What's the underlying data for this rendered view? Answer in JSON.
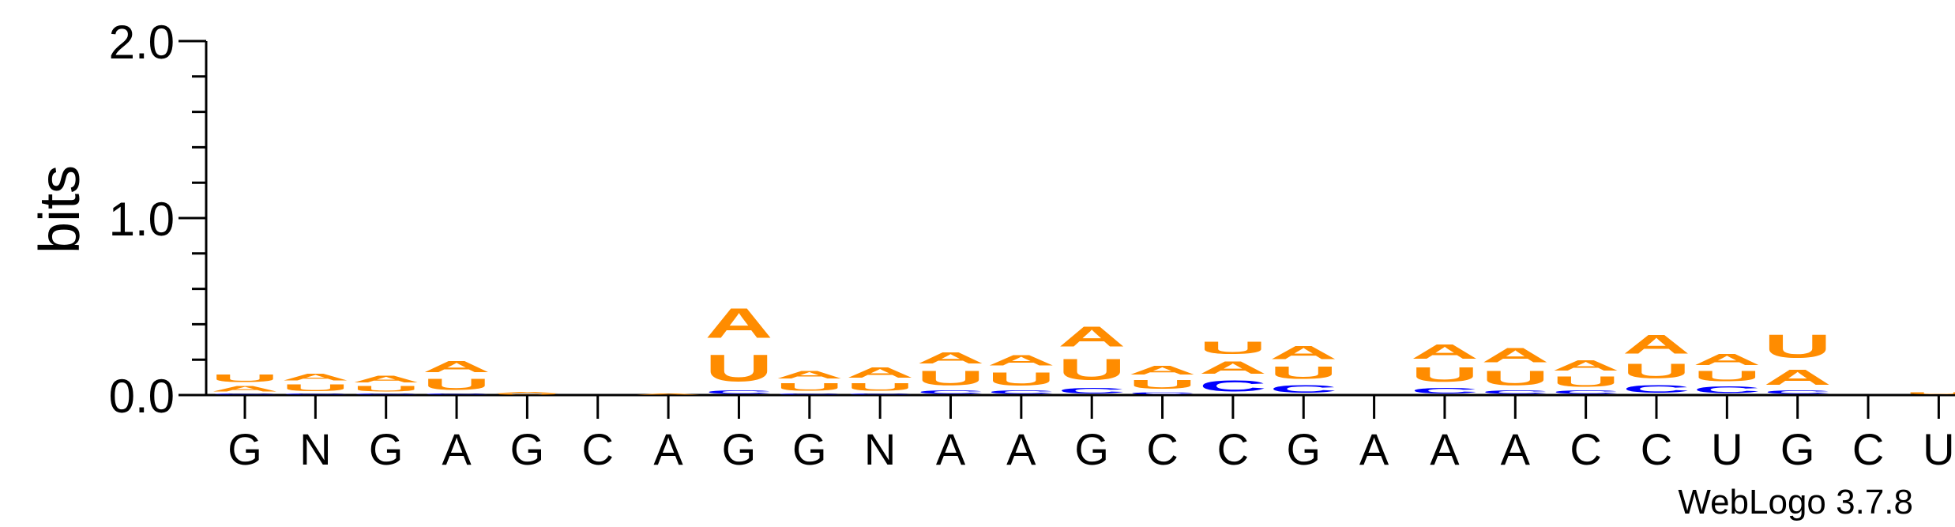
{
  "chart_data": {
    "type": "sequence-logo",
    "ylabel": "bits",
    "yticks": [
      "0.0",
      "1.0",
      "2.0"
    ],
    "ylim": [
      0,
      2
    ],
    "credit": "WebLogo 3.7.8",
    "colors": {
      "A": "#ff8c00",
      "U": "#ff8c00",
      "C": "#0000ff",
      "G": "#0000ff"
    },
    "positions": [
      {
        "label": "G",
        "stack": [
          [
            "C",
            0.01
          ],
          [
            "A",
            0.05
          ],
          [
            "U",
            0.07
          ]
        ]
      },
      {
        "label": "N",
        "stack": [
          [
            "C",
            0.01
          ],
          [
            "U",
            0.06
          ],
          [
            "A",
            0.06
          ]
        ]
      },
      {
        "label": "G",
        "stack": [
          [
            "C",
            0.01
          ],
          [
            "U",
            0.05
          ],
          [
            "A",
            0.06
          ]
        ]
      },
      {
        "label": "A",
        "stack": [
          [
            "C",
            0.01
          ],
          [
            "U",
            0.1
          ],
          [
            "A",
            0.1
          ]
        ]
      },
      {
        "label": "G",
        "stack": [
          [
            "U",
            0.01
          ],
          [
            "A",
            0.01
          ]
        ]
      },
      {
        "label": "C",
        "stack": []
      },
      {
        "label": "A",
        "stack": [
          [
            "A",
            0.01
          ]
        ]
      },
      {
        "label": "G",
        "stack": [
          [
            "C",
            0.03
          ],
          [
            "U",
            0.24
          ],
          [
            "A",
            0.27
          ]
        ]
      },
      {
        "label": "G",
        "stack": [
          [
            "C",
            0.01
          ],
          [
            "U",
            0.07
          ],
          [
            "A",
            0.07
          ]
        ]
      },
      {
        "label": "N",
        "stack": [
          [
            "C",
            0.01
          ],
          [
            "U",
            0.07
          ],
          [
            "A",
            0.09
          ]
        ]
      },
      {
        "label": "A",
        "stack": [
          [
            "C",
            0.03
          ],
          [
            "U",
            0.13
          ],
          [
            "A",
            0.1
          ]
        ]
      },
      {
        "label": "A",
        "stack": [
          [
            "C",
            0.03
          ],
          [
            "U",
            0.12
          ],
          [
            "A",
            0.09
          ]
        ]
      },
      {
        "label": "G",
        "stack": [
          [
            "C",
            0.05
          ],
          [
            "U",
            0.19
          ],
          [
            "A",
            0.18
          ]
        ]
      },
      {
        "label": "C",
        "stack": [
          [
            "C",
            0.02
          ],
          [
            "U",
            0.08
          ],
          [
            "A",
            0.08
          ]
        ]
      },
      {
        "label": "C",
        "stack": [
          [
            "C",
            0.1
          ],
          [
            "A",
            0.11
          ],
          [
            "U",
            0.11
          ]
        ]
      },
      {
        "label": "G",
        "stack": [
          [
            "C",
            0.07
          ],
          [
            "U",
            0.11
          ],
          [
            "A",
            0.12
          ]
        ]
      },
      {
        "label": "A",
        "stack": []
      },
      {
        "label": "A",
        "stack": [
          [
            "C",
            0.05
          ],
          [
            "U",
            0.13
          ],
          [
            "A",
            0.13
          ]
        ]
      },
      {
        "label": "A",
        "stack": [
          [
            "C",
            0.03
          ],
          [
            "U",
            0.13
          ],
          [
            "A",
            0.13
          ]
        ]
      },
      {
        "label": "C",
        "stack": [
          [
            "C",
            0.03
          ],
          [
            "U",
            0.09
          ],
          [
            "A",
            0.09
          ]
        ]
      },
      {
        "label": "C",
        "stack": [
          [
            "C",
            0.07
          ],
          [
            "U",
            0.13
          ],
          [
            "A",
            0.17
          ]
        ]
      },
      {
        "label": "U",
        "stack": [
          [
            "C",
            0.06
          ],
          [
            "U",
            0.09
          ],
          [
            "A",
            0.1
          ]
        ]
      },
      {
        "label": "G",
        "stack": [
          [
            "C",
            0.03
          ],
          [
            "A",
            0.14
          ],
          [
            "U",
            0.21
          ]
        ]
      },
      {
        "label": "C",
        "stack": []
      },
      {
        "label": "U",
        "stack": [
          [
            "U",
            0.02
          ]
        ]
      }
    ],
    "grid": false,
    "legend": "none"
  }
}
